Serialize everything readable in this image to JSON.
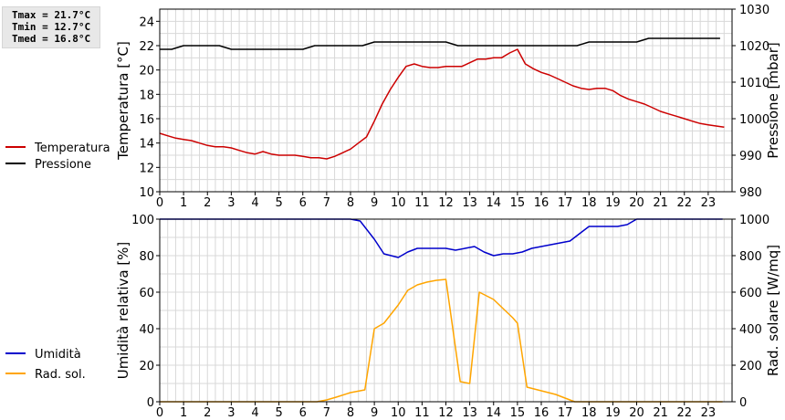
{
  "stats": [
    "Tmax = 21.7°C",
    "Tmin = 12.7°C",
    "Tmed = 16.8°C"
  ],
  "colors": {
    "temperature": "#cc0000",
    "pressure": "#000000",
    "humidity": "#0000cc",
    "radiation": "#ffa500",
    "grid": "#d8d8d8"
  },
  "chart_data": [
    {
      "type": "line",
      "ylabel": "Temperatura [°C]",
      "ylabel_right": "Pressione [mbar]",
      "xlim": [
        0,
        24
      ],
      "ylim": [
        10,
        25
      ],
      "ylim_right": [
        980,
        1030
      ],
      "xticks": [
        0,
        1,
        2,
        3,
        4,
        5,
        6,
        7,
        8,
        9,
        10,
        11,
        12,
        13,
        14,
        15,
        16,
        17,
        18,
        19,
        20,
        21,
        22,
        23
      ],
      "xtick_labels": [
        "0",
        "1",
        "2",
        "3",
        "4",
        "5",
        "6",
        "7",
        "8",
        "9",
        "10",
        "11",
        "12",
        "13",
        "14",
        "15",
        "16",
        "17",
        "18",
        "19",
        "20",
        "21",
        "22",
        "23"
      ],
      "yticks": [
        10,
        12,
        14,
        16,
        18,
        20,
        22,
        24
      ],
      "yticks_right": [
        980,
        990,
        1000,
        1010,
        1020,
        1030
      ],
      "grid": true,
      "legend_position": "left",
      "series": [
        {
          "name": "Temperatura",
          "axis": "left",
          "x": [
            0,
            0.33,
            0.67,
            1,
            1.33,
            1.67,
            2,
            2.33,
            2.67,
            3,
            3.33,
            3.67,
            4,
            4.33,
            4.67,
            5,
            5.33,
            5.67,
            6,
            6.33,
            6.67,
            7,
            7.33,
            7.67,
            8,
            8.33,
            8.67,
            9,
            9.33,
            9.67,
            10,
            10.33,
            10.67,
            11,
            11.33,
            11.67,
            12,
            12.33,
            12.67,
            13,
            13.33,
            13.67,
            14,
            14.33,
            14.67,
            15,
            15.33,
            15.67,
            16,
            16.33,
            16.67,
            17,
            17.33,
            17.67,
            18,
            18.33,
            18.67,
            19,
            19.33,
            19.67,
            20,
            20.33,
            20.67,
            21,
            21.33,
            21.67,
            22,
            22.33,
            22.67,
            23,
            23.33,
            23.67
          ],
          "y": [
            14.8,
            14.6,
            14.4,
            14.3,
            14.2,
            14.0,
            13.8,
            13.7,
            13.7,
            13.6,
            13.4,
            13.2,
            13.1,
            13.3,
            13.1,
            13.0,
            13.0,
            13.0,
            12.9,
            12.8,
            12.8,
            12.7,
            12.9,
            13.2,
            13.5,
            14.0,
            14.5,
            15.8,
            17.2,
            18.4,
            19.4,
            20.3,
            20.5,
            20.3,
            20.2,
            20.2,
            20.3,
            20.3,
            20.3,
            20.6,
            20.9,
            20.9,
            21.0,
            21.0,
            21.4,
            21.7,
            20.5,
            20.1,
            19.8,
            19.6,
            19.3,
            19.0,
            18.7,
            18.5,
            18.4,
            18.5,
            18.5,
            18.3,
            17.9,
            17.6,
            17.4,
            17.2,
            16.9,
            16.6,
            16.4,
            16.2,
            16.0,
            15.8,
            15.6,
            15.5,
            15.4,
            15.3
          ],
          "color": "#cc0000"
        },
        {
          "name": "Pressione",
          "axis": "right",
          "x": [
            0,
            0.5,
            1,
            1.5,
            2,
            2.5,
            3,
            3.5,
            4,
            4.5,
            5,
            5.5,
            6,
            6.5,
            7,
            7.5,
            8,
            8.5,
            9,
            9.5,
            10,
            10.5,
            11,
            11.5,
            12,
            12.5,
            13,
            13.5,
            14,
            14.5,
            15,
            15.5,
            16,
            16.5,
            17,
            17.5,
            18,
            18.5,
            19,
            19.5,
            20,
            20.5,
            21,
            21.5,
            22,
            22.5,
            23,
            23.5
          ],
          "y": [
            1019,
            1019,
            1020,
            1020,
            1020,
            1020,
            1019,
            1019,
            1019,
            1019,
            1019,
            1019,
            1019,
            1020,
            1020,
            1020,
            1020,
            1020,
            1021,
            1021,
            1021,
            1021,
            1021,
            1021,
            1021,
            1020,
            1020,
            1020,
            1020,
            1020,
            1020,
            1020,
            1020,
            1020,
            1020,
            1020,
            1021,
            1021,
            1021,
            1021,
            1021,
            1022,
            1022,
            1022,
            1022,
            1022,
            1022,
            1022
          ],
          "color": "#000000"
        }
      ]
    },
    {
      "type": "line",
      "ylabel": "Umidità relativa [%]",
      "ylabel_right": "Rad. solare [W/mq]",
      "xlim": [
        0,
        24
      ],
      "ylim": [
        0,
        100
      ],
      "ylim_right": [
        0,
        1000
      ],
      "xticks": [
        0,
        1,
        2,
        3,
        4,
        5,
        6,
        7,
        8,
        9,
        10,
        11,
        12,
        13,
        14,
        15,
        16,
        17,
        18,
        19,
        20,
        21,
        22,
        23
      ],
      "xtick_labels": [
        "0",
        "1",
        "2",
        "3",
        "4",
        "5",
        "6",
        "7",
        "8",
        "9",
        "10",
        "11",
        "12",
        "13",
        "14",
        "15",
        "16",
        "17",
        "18",
        "19",
        "20",
        "21",
        "22",
        "23"
      ],
      "yticks": [
        0,
        20,
        40,
        60,
        80,
        100
      ],
      "yticks_right": [
        0,
        200,
        400,
        600,
        800,
        1000
      ],
      "grid": true,
      "legend_position": "left",
      "series": [
        {
          "name": "Umidità",
          "axis": "left",
          "x": [
            0,
            1,
            2,
            3,
            4,
            5,
            6,
            7,
            8,
            8.4,
            9,
            9.4,
            10,
            10.4,
            10.8,
            11.2,
            11.6,
            12,
            12.4,
            12.8,
            13.2,
            13.6,
            14,
            14.4,
            14.8,
            15.2,
            15.6,
            16,
            16.4,
            16.8,
            17.2,
            17.6,
            18,
            18.4,
            18.8,
            19.2,
            19.6,
            20,
            20.4,
            21,
            22,
            23,
            23.6
          ],
          "y": [
            100,
            100,
            100,
            100,
            100,
            100,
            100,
            100,
            100,
            99,
            89,
            81,
            79,
            82,
            84,
            84,
            84,
            84,
            83,
            84,
            85,
            82,
            80,
            81,
            81,
            82,
            84,
            85,
            86,
            87,
            88,
            92,
            96,
            96,
            96,
            96,
            97,
            100,
            100,
            100,
            100,
            100,
            100
          ],
          "color": "#0000cc"
        },
        {
          "name": "Rad. sol.",
          "axis": "right",
          "x": [
            0,
            1,
            2,
            3,
            4,
            5,
            6,
            6.6,
            7,
            7.4,
            8,
            8.4,
            8.6,
            9,
            9.4,
            10,
            10.4,
            10.8,
            11.2,
            11.6,
            12,
            12.6,
            13,
            13.4,
            14,
            14.4,
            14.8,
            15,
            15.4,
            16,
            16.6,
            17,
            17.4,
            17.8,
            18,
            19,
            20,
            21,
            22,
            23,
            23.6
          ],
          "y": [
            0,
            0,
            0,
            0,
            0,
            0,
            0,
            0,
            10,
            25,
            50,
            60,
            65,
            400,
            430,
            530,
            610,
            640,
            655,
            665,
            670,
            110,
            100,
            600,
            560,
            510,
            460,
            430,
            80,
            60,
            40,
            20,
            0,
            0,
            0,
            0,
            0,
            0,
            0,
            0,
            0
          ],
          "color": "#ffa500"
        }
      ]
    }
  ]
}
